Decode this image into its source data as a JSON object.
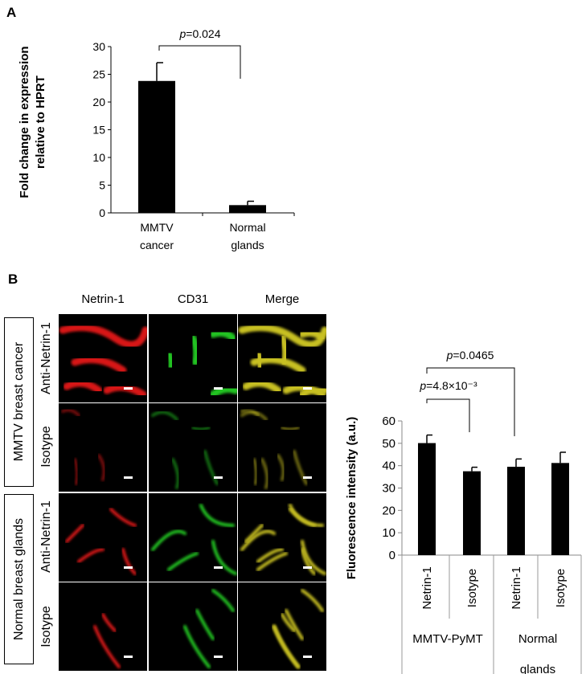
{
  "panels": {
    "a_label": "A",
    "b_label": "B"
  },
  "micrographs": {
    "columns": [
      "Netrin-1",
      "CD31",
      "Merge"
    ],
    "groups": [
      "MMTV breast cancer",
      "Normal breast glands"
    ],
    "rows": [
      "Anti-Netrin-1",
      "Isotype",
      "Anti-Netrin-1",
      "Isotype"
    ],
    "colors": {
      "netrin": "#d81818",
      "cd31": "#22c422",
      "merge": "#c8c020"
    }
  },
  "chart_data": [
    {
      "type": "bar",
      "panel": "A",
      "categories": [
        [
          "MMTV",
          "cancer"
        ],
        [
          "Normal",
          "glands"
        ]
      ],
      "values": [
        23.8,
        1.4
      ],
      "errors": [
        3.3,
        0.7
      ],
      "ylabel": [
        "Fold change in expression",
        "relative to HPRT"
      ],
      "ylim": [
        0,
        30
      ],
      "yticks": [
        0,
        5,
        10,
        15,
        20,
        25,
        30
      ],
      "grid": false,
      "bar_color": "#000000",
      "annotations": [
        {
          "between": [
            0,
            1
          ],
          "text": "p=0.024"
        }
      ]
    },
    {
      "type": "bar",
      "panel": "B",
      "categories": [
        "Netrin-1",
        "Isotype",
        "Netrin-1",
        "Isotype"
      ],
      "groups": [
        {
          "label": [
            "MMTV-PyMT"
          ],
          "span": [
            0,
            1
          ]
        },
        {
          "label": [
            "Normal",
            "glands"
          ],
          "span": [
            2,
            3
          ]
        }
      ],
      "values": [
        50.1,
        37.5,
        39.5,
        41.2
      ],
      "errors": [
        3.6,
        1.8,
        3.5,
        4.8
      ],
      "ylabel": "Fluorescence intensity (a.u.)",
      "ylim": [
        0,
        60
      ],
      "yticks": [
        0,
        10,
        20,
        30,
        40,
        50,
        60
      ],
      "grid": false,
      "bar_color": "#000000",
      "annotations": [
        {
          "between": [
            0,
            1
          ],
          "text": "p=4.8×10⁻³"
        },
        {
          "between": [
            0,
            2
          ],
          "text": "p=0.0465"
        }
      ]
    }
  ]
}
